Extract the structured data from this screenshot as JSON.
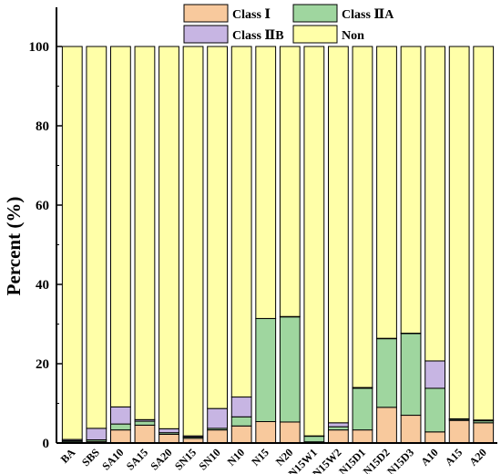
{
  "chart_data": {
    "type": "bar",
    "stacked": true,
    "ylabel": "Percent (%)",
    "ylim": [
      0,
      100
    ],
    "yticks": [
      0,
      20,
      40,
      60,
      80,
      100
    ],
    "categories": [
      "BA",
      "SBS",
      "SA10",
      "SA15",
      "SA20",
      "SN15",
      "SN10",
      "N10",
      "N15",
      "N20",
      "N15W1",
      "N15W2",
      "N15D1",
      "N15D2",
      "N15D3",
      "A10",
      "A15",
      "A20"
    ],
    "series": [
      {
        "name": "Class Ⅰ",
        "color": "#f8c99d",
        "values": [
          0.3,
          0.4,
          3.3,
          4.5,
          2.2,
          1.2,
          3.3,
          4.3,
          5.4,
          5.3,
          0.3,
          3.3,
          3.3,
          9.0,
          7.0,
          2.8,
          5.7,
          5.1
        ]
      },
      {
        "name": "Class ⅡA",
        "color": "#9fd69f",
        "values": [
          0.3,
          0.4,
          1.5,
          1.0,
          0.4,
          0.3,
          0.4,
          2.3,
          26.0,
          26.5,
          1.4,
          0.8,
          10.5,
          17.3,
          20.6,
          11.0,
          0.3,
          0.5
        ]
      },
      {
        "name": "Class ⅡB",
        "color": "#c7b5e3",
        "values": [
          0.3,
          2.9,
          4.3,
          0.4,
          1.0,
          0.3,
          5.0,
          5.0,
          0.0,
          0.1,
          0.1,
          1.0,
          0.2,
          0.1,
          0.1,
          6.9,
          0.1,
          0.2
        ]
      },
      {
        "name": "Non",
        "color": "#ffffa8",
        "values": [
          99.1,
          96.3,
          90.9,
          94.1,
          96.4,
          98.2,
          91.3,
          88.4,
          68.6,
          68.1,
          98.2,
          94.9,
          86.0,
          73.6,
          72.3,
          79.3,
          93.9,
          94.2
        ]
      }
    ],
    "legend": {
      "placement": "top-center",
      "columns": 2
    },
    "grid": false
  }
}
